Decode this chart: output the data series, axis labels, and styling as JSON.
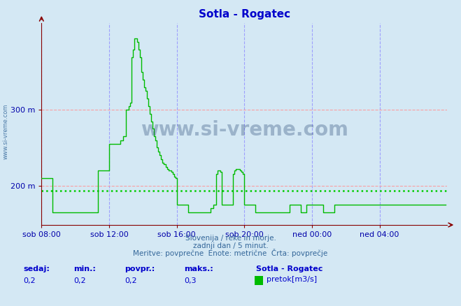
{
  "title": "Sotla - Rogatec",
  "title_color": "#0000cc",
  "bg_color": "#d4e8f4",
  "plot_bg_color": "#d4e8f4",
  "line_color": "#00bb00",
  "avg_line_color": "#00cc00",
  "avg_value": 193,
  "grid_color_h": "#ff9999",
  "grid_color_v": "#9999ff",
  "xlabel_color": "#0000aa",
  "ylabel_color": "#0000aa",
  "yticks": [
    200,
    300
  ],
  "ylim_min": 148,
  "ylim_max": 415,
  "xlim_min": 0,
  "xlim_max": 288,
  "xtick_labels": [
    "sob 08:00",
    "sob 12:00",
    "sob 16:00",
    "sob 20:00",
    "ned 00:00",
    "ned 04:00"
  ],
  "xtick_positions": [
    0,
    48,
    96,
    144,
    192,
    240
  ],
  "footer_line1": "Slovenija / reke in morje.",
  "footer_line2": "zadnji dan / 5 minut.",
  "footer_line3": "Meritve: povprečne  Enote: metrične  Črta: povprečje",
  "footer_color": "#336699",
  "stat_labels": [
    "sedaj:",
    "min.:",
    "povpr.:",
    "maks.:"
  ],
  "stat_values": [
    "0,2",
    "0,2",
    "0,2",
    "0,3"
  ],
  "legend_title": "Sotla - Rogatec",
  "legend_label": "pretok[m3/s]",
  "watermark": "www.si-vreme.com",
  "watermark_color": "#1a3a6a",
  "data_y": [
    210,
    210,
    210,
    210,
    210,
    210,
    210,
    210,
    165,
    165,
    165,
    165,
    165,
    165,
    165,
    165,
    165,
    165,
    165,
    165,
    165,
    165,
    165,
    165,
    165,
    165,
    165,
    165,
    165,
    165,
    165,
    165,
    165,
    165,
    165,
    165,
    165,
    165,
    165,
    165,
    220,
    220,
    220,
    220,
    220,
    220,
    220,
    220,
    255,
    255,
    255,
    255,
    255,
    255,
    255,
    255,
    260,
    260,
    265,
    265,
    300,
    300,
    305,
    310,
    370,
    380,
    395,
    395,
    390,
    380,
    370,
    350,
    340,
    330,
    325,
    315,
    305,
    295,
    285,
    275,
    265,
    260,
    250,
    245,
    240,
    235,
    230,
    228,
    225,
    222,
    220,
    220,
    218,
    215,
    212,
    210,
    175,
    175,
    175,
    175,
    175,
    175,
    175,
    175,
    165,
    165,
    165,
    165,
    165,
    165,
    165,
    165,
    165,
    165,
    165,
    165,
    165,
    165,
    165,
    165,
    170,
    170,
    175,
    175,
    215,
    220,
    220,
    218,
    175,
    175,
    175,
    175,
    175,
    175,
    175,
    175,
    215,
    220,
    222,
    222,
    222,
    220,
    218,
    215,
    175,
    175,
    175,
    175,
    175,
    175,
    175,
    175,
    165,
    165,
    165,
    165,
    165,
    165,
    165,
    165,
    165,
    165,
    165,
    165,
    165,
    165,
    165,
    165,
    165,
    165,
    165,
    165,
    165,
    165,
    165,
    165,
    175,
    175,
    175,
    175,
    175,
    175,
    175,
    175,
    165,
    165,
    165,
    165,
    175,
    175,
    175,
    175,
    175,
    175,
    175,
    175,
    175,
    175,
    175,
    175,
    165,
    165,
    165,
    165,
    165,
    165,
    165,
    165,
    175,
    175,
    175,
    175,
    175,
    175,
    175,
    175,
    175,
    175,
    175,
    175,
    175,
    175,
    175,
    175,
    175,
    175,
    175,
    175,
    175,
    175,
    175,
    175,
    175,
    175,
    175,
    175,
    175,
    175,
    175,
    175,
    175,
    175,
    175,
    175,
    175,
    175,
    175,
    175,
    175,
    175,
    175,
    175,
    175,
    175,
    175,
    175,
    175,
    175,
    175,
    175,
    175,
    175,
    175,
    175,
    175,
    175,
    175,
    175,
    175,
    175,
    175,
    175,
    175,
    175,
    175,
    175,
    175,
    175,
    175,
    175,
    175,
    175,
    175,
    175,
    175,
    175,
    175,
    175
  ]
}
